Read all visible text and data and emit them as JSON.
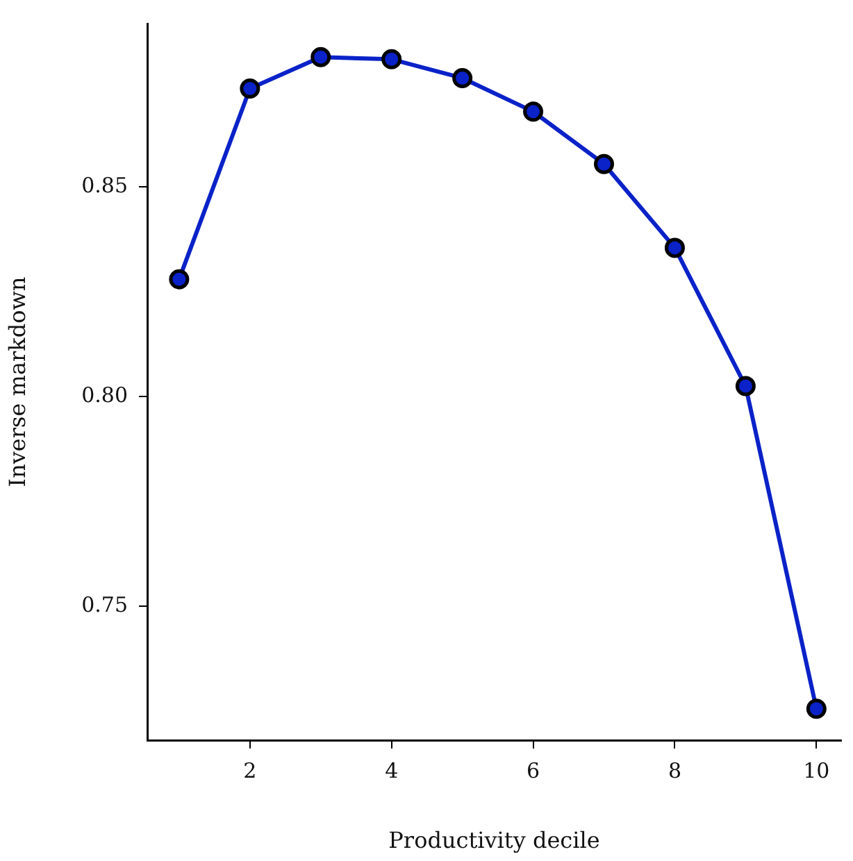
{
  "chart_data": {
    "type": "line",
    "xlabel": "Productivity decile",
    "ylabel": "Inverse markdown",
    "x": [
      1,
      2,
      3,
      4,
      5,
      6,
      7,
      8,
      9,
      10
    ],
    "series": [
      {
        "color": "#0a22c8",
        "values": [
          0.828,
          0.8735,
          0.881,
          0.8805,
          0.876,
          0.868,
          0.8555,
          0.8355,
          0.8025,
          0.7255
        ]
      }
    ],
    "xlim": [
      0.55,
      10.35
    ],
    "xticks": [
      2,
      4,
      6,
      8,
      10
    ],
    "ylim": [
      0.718,
      0.889
    ],
    "yticks": [
      {
        "value": 0.75,
        "label": "0.75"
      },
      {
        "value": 0.8,
        "label": "0.80"
      },
      {
        "value": 0.85,
        "label": "0.85"
      }
    ],
    "grid": false,
    "legend": false,
    "marker": "circle",
    "line_style": "solid"
  }
}
